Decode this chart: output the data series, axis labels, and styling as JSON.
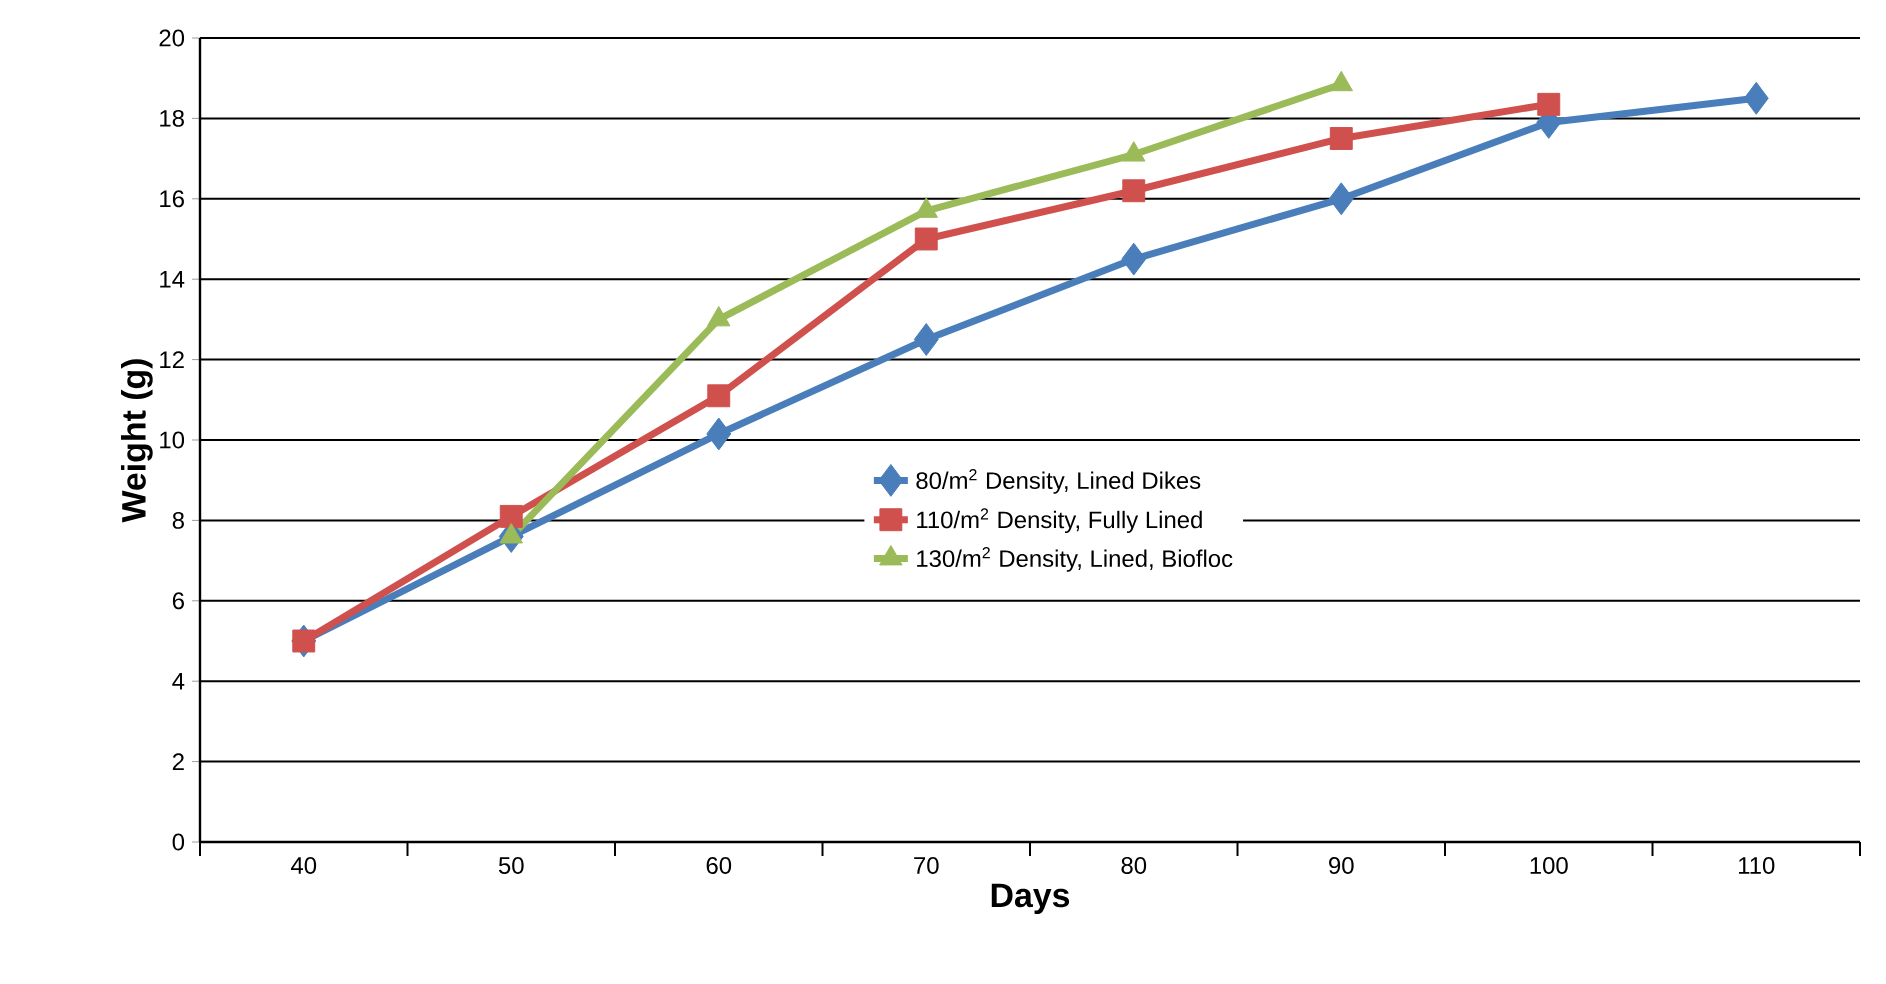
{
  "chart_data": {
    "type": "line",
    "xlabel": "Days",
    "ylabel": "Weight (g)",
    "categories": [
      "40",
      "50",
      "60",
      "70",
      "80",
      "90",
      "100",
      "110"
    ],
    "series": [
      {
        "name": "80/m$^{2}$ Density, Lined Dikes",
        "color": "#4a7ebb",
        "marker": "diamond",
        "values": [
          5.0,
          7.6,
          10.15,
          12.5,
          14.5,
          16.0,
          17.9,
          18.5
        ]
      },
      {
        "name": "110/m$^{2}$ Density, Fully Lined",
        "color": "#cf504d",
        "marker": "square",
        "values": [
          5.0,
          8.1,
          11.1,
          15.0,
          16.2,
          17.5,
          18.35,
          null
        ]
      },
      {
        "name": "130/m$^{2}$ Density, Lined, Biofloc",
        "color": "#9bbb59",
        "marker": "triangle",
        "values": [
          null,
          7.6,
          13.0,
          15.7,
          17.1,
          18.85,
          null,
          null
        ]
      }
    ],
    "ylim": [
      0,
      20
    ],
    "yticks": [
      0,
      2,
      4,
      6,
      8,
      10,
      12,
      14,
      16,
      18,
      20
    ],
    "grid": "y",
    "legend": "center",
    "line_style": "solid"
  }
}
